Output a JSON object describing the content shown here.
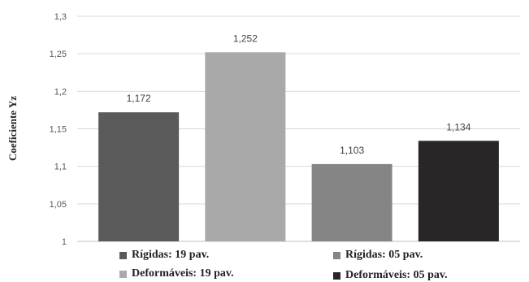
{
  "chart_data": {
    "type": "bar",
    "ylabel": "Coeficiente Yz",
    "ylim": [
      1,
      1.3
    ],
    "yticks": [
      "1",
      "1,05",
      "1,1",
      "1,15",
      "1,2",
      "1,25",
      "1,3"
    ],
    "ytick_values": [
      1,
      1.05,
      1.1,
      1.15,
      1.2,
      1.25,
      1.3
    ],
    "grid": true,
    "legend_position": "bottom",
    "series": [
      {
        "name": "Rígidas: 19 pav.",
        "value": 1.172,
        "label": "1,172",
        "color": "#5a5a5a"
      },
      {
        "name": "Deformáveis: 19 pav.",
        "value": 1.252,
        "label": "1,252",
        "color": "#a9a9a9"
      },
      {
        "name": "Rígidas: 05 pav.",
        "value": 1.103,
        "label": "1,103",
        "color": "#858585"
      },
      {
        "name": "Deformáveis: 05 pav.",
        "value": 1.134,
        "label": "1,134",
        "color": "#2a2627"
      }
    ]
  }
}
